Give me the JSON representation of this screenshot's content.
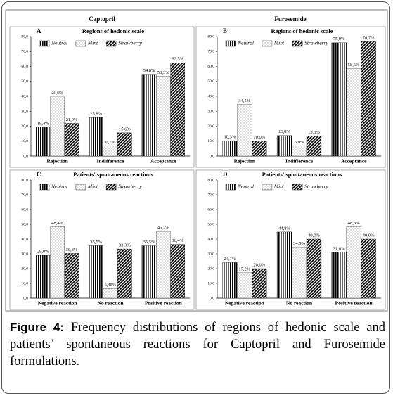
{
  "columns": [
    "Captopril",
    "Furosemide"
  ],
  "caption": {
    "label": "Figure 4:",
    "text": "Frequency distributions of regions of hedonic scale and patients’ spontaneous reactions for Captopril and Furosemide formulations."
  },
  "chart_data": [
    {
      "type": "bar",
      "panel": "A",
      "title": "Regions of hedonic scale",
      "categories": [
        "Rejection",
        "Indifference",
        "Acceptance"
      ],
      "series": [
        {
          "name": "Neutral",
          "color": "#000000",
          "pattern": "vertical",
          "values": [
            19.4,
            25.8,
            54.8
          ],
          "value_labels": [
            "19,4%",
            "25,8%",
            "54,8%"
          ]
        },
        {
          "name": "Mint",
          "color": "#000000",
          "pattern": "dots",
          "values": [
            40.0,
            6.7,
            53.3
          ],
          "value_labels": [
            "40,0%",
            "6,7%",
            "53,3%"
          ]
        },
        {
          "name": "Strawberry",
          "color": "#000000",
          "pattern": "diagonal",
          "values": [
            21.9,
            15.6,
            62.5
          ],
          "value_labels": [
            "21,9%",
            "15,6%",
            "62,5%"
          ]
        }
      ],
      "ylim": [
        0,
        80
      ],
      "yticks": [
        {
          "value": 0,
          "label": "0,0"
        },
        {
          "value": 10,
          "label": "10,0"
        },
        {
          "value": 20,
          "label": "20,0"
        },
        {
          "value": 30,
          "label": "30,0"
        },
        {
          "value": 40,
          "label": "40,0"
        },
        {
          "value": 50,
          "label": "50,0"
        },
        {
          "value": 60,
          "label": "60,0"
        },
        {
          "value": 70,
          "label": "70,0"
        },
        {
          "value": 80,
          "label": "80,0"
        }
      ]
    },
    {
      "type": "bar",
      "panel": "B",
      "title": "Regions of hedonic scale",
      "categories": [
        "Rejection",
        "Indifference",
        "Acceptance"
      ],
      "series": [
        {
          "name": "Neutral",
          "color": "#000000",
          "pattern": "vertical",
          "values": [
            10.3,
            13.8,
            75.9
          ],
          "value_labels": [
            "10,3%",
            "13,8%",
            "75,9%"
          ]
        },
        {
          "name": "Mint",
          "color": "#000000",
          "pattern": "dots",
          "values": [
            34.5,
            6.9,
            58.6
          ],
          "value_labels": [
            "34,5%",
            "6,9%",
            "58,6%"
          ]
        },
        {
          "name": "Strawberry",
          "color": "#000000",
          "pattern": "diagonal",
          "values": [
            10.0,
            13.3,
            76.7
          ],
          "value_labels": [
            "10,0%",
            "13,3%",
            "76,7%"
          ]
        }
      ],
      "ylim": [
        0,
        80
      ],
      "yticks": [
        {
          "value": 0,
          "label": "0,0"
        },
        {
          "value": 10,
          "label": "10,0"
        },
        {
          "value": 20,
          "label": "20,0"
        },
        {
          "value": 30,
          "label": "30,0"
        },
        {
          "value": 40,
          "label": "40,0"
        },
        {
          "value": 50,
          "label": "50,0"
        },
        {
          "value": 60,
          "label": "60,0"
        },
        {
          "value": 70,
          "label": "70,0"
        },
        {
          "value": 80,
          "label": "80,0"
        }
      ]
    },
    {
      "type": "bar",
      "panel": "C",
      "title": "Patients' spontaneous reactions",
      "categories": [
        "Negative reaction",
        "No reaction",
        "Positive reaction"
      ],
      "series": [
        {
          "name": "Neutral",
          "color": "#000000",
          "pattern": "vertical",
          "values": [
            29.0,
            35.5,
            35.5
          ],
          "value_labels": [
            "29,0%",
            "35,5%",
            "35,5%"
          ]
        },
        {
          "name": "Mint",
          "color": "#000000",
          "pattern": "dots",
          "values": [
            48.4,
            6.45,
            45.2
          ],
          "value_labels": [
            "48,4%",
            "6,45%",
            "45,2%"
          ]
        },
        {
          "name": "Strawberry",
          "color": "#000000",
          "pattern": "diagonal",
          "values": [
            30.3,
            33.3,
            36.4
          ],
          "value_labels": [
            "30,3%",
            "33,3%",
            "36,4%"
          ]
        }
      ],
      "ylim": [
        0,
        80
      ],
      "yticks": [
        {
          "value": 0,
          "label": "0,0"
        },
        {
          "value": 10,
          "label": "10,0"
        },
        {
          "value": 20,
          "label": "20,0"
        },
        {
          "value": 30,
          "label": "30,0"
        },
        {
          "value": 40,
          "label": "40,0"
        },
        {
          "value": 50,
          "label": "50,0"
        },
        {
          "value": 60,
          "label": "60,0"
        },
        {
          "value": 70,
          "label": "70,0"
        },
        {
          "value": 80,
          "label": "80,0"
        }
      ]
    },
    {
      "type": "bar",
      "panel": "D",
      "title": "Patients' spontaneous reactions",
      "categories": [
        "Negative reaction",
        "No reaction",
        "Positive reaction"
      ],
      "series": [
        {
          "name": "Neutral",
          "color": "#000000",
          "pattern": "vertical",
          "values": [
            24.1,
            44.8,
            31.0
          ],
          "value_labels": [
            "24,1%",
            "44,8%",
            "31,0%"
          ]
        },
        {
          "name": "Mint",
          "color": "#000000",
          "pattern": "dots",
          "values": [
            17.2,
            34.5,
            48.3
          ],
          "value_labels": [
            "17,2%",
            "34,5%",
            "48,3%"
          ]
        },
        {
          "name": "Strawberry",
          "color": "#000000",
          "pattern": "diagonal",
          "values": [
            20.0,
            40.0,
            40.0
          ],
          "value_labels": [
            "20,0%",
            "40,0%",
            "40,0%"
          ]
        }
      ],
      "ylim": [
        0,
        80
      ],
      "yticks": [
        {
          "value": 0,
          "label": "0,0"
        },
        {
          "value": 10,
          "label": "10,0"
        },
        {
          "value": 20,
          "label": "20,0"
        },
        {
          "value": 30,
          "label": "30,0"
        },
        {
          "value": 40,
          "label": "40,0"
        },
        {
          "value": 50,
          "label": "50,0"
        },
        {
          "value": 60,
          "label": "60,0"
        },
        {
          "value": 70,
          "label": "70,0"
        },
        {
          "value": 80,
          "label": "80,0"
        }
      ]
    }
  ]
}
